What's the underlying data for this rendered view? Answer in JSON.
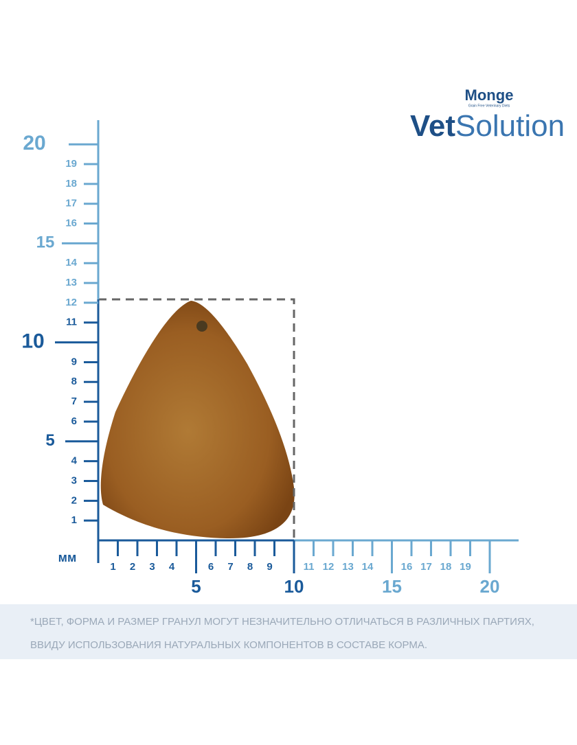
{
  "logo": {
    "brand": "Monge",
    "tagline": "Grain Free Veterinary Diets",
    "product_bold": "Vet",
    "product_light": "Solution"
  },
  "ruler": {
    "unit": "мм",
    "vertical": {
      "minor": [
        1,
        2,
        3,
        4,
        6,
        7,
        8,
        9,
        11,
        12,
        13,
        14,
        16,
        17,
        18,
        19
      ],
      "major": [
        5,
        10,
        15,
        20
      ]
    },
    "horizontal": {
      "minor": [
        1,
        2,
        3,
        4,
        6,
        7,
        8,
        9,
        11,
        12,
        13,
        14,
        16,
        17,
        18,
        19
      ],
      "major": [
        5,
        10,
        15,
        20
      ]
    }
  },
  "disclaimer": [
    "*ЦВЕТ, ФОРМА И РАЗМЕР ГРАНУЛ МОГУТ НЕЗНАЧИТЕЛЬНО ОТЛИЧАТЬСЯ В РАЗЛИЧНЫХ ПАРТИЯХ,",
    "ВВИДУ ИСПОЛЬЗОВАНИЯ НАТУРАЛЬНЫХ КОМПОНЕНТОВ В СОСТАВЕ КОРМА."
  ]
}
